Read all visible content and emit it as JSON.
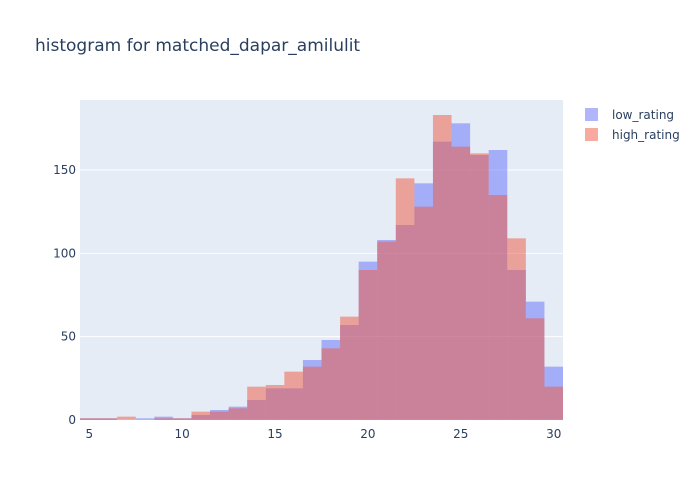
{
  "chart_data": {
    "type": "histogram",
    "title": "histogram for matched_dapar_amilulit",
    "xlabel": "",
    "ylabel": "",
    "xlim": [
      4.5,
      30.5
    ],
    "ylim": [
      0,
      192
    ],
    "x_ticks": [
      5,
      10,
      15,
      20,
      25,
      30
    ],
    "y_ticks": [
      0,
      50,
      100,
      150
    ],
    "grid": true,
    "legend_position": "top-right",
    "bin_edges": [
      4.5,
      5.5,
      6.5,
      7.5,
      8.5,
      9.5,
      10.5,
      11.5,
      12.5,
      13.5,
      14.5,
      15.5,
      16.5,
      17.5,
      18.5,
      19.5,
      20.5,
      21.5,
      22.5,
      23.5,
      24.5,
      25.5,
      26.5,
      27.5,
      28.5,
      29.5,
      30.5
    ],
    "series": [
      {
        "name": "low_rating",
        "color": "#636efa",
        "values": [
          1,
          1,
          0,
          1,
          2,
          1,
          3,
          6,
          8,
          12,
          19,
          19,
          36,
          48,
          57,
          95,
          108,
          117,
          142,
          167,
          178,
          159,
          162,
          90,
          71,
          32
        ]
      },
      {
        "name": "high_rating",
        "color": "#ef553b",
        "values": [
          1,
          1,
          2,
          0,
          1,
          1,
          5,
          5,
          7,
          20,
          21,
          29,
          32,
          43,
          62,
          90,
          107,
          145,
          128,
          183,
          164,
          160,
          135,
          109,
          61,
          20
        ]
      }
    ]
  }
}
